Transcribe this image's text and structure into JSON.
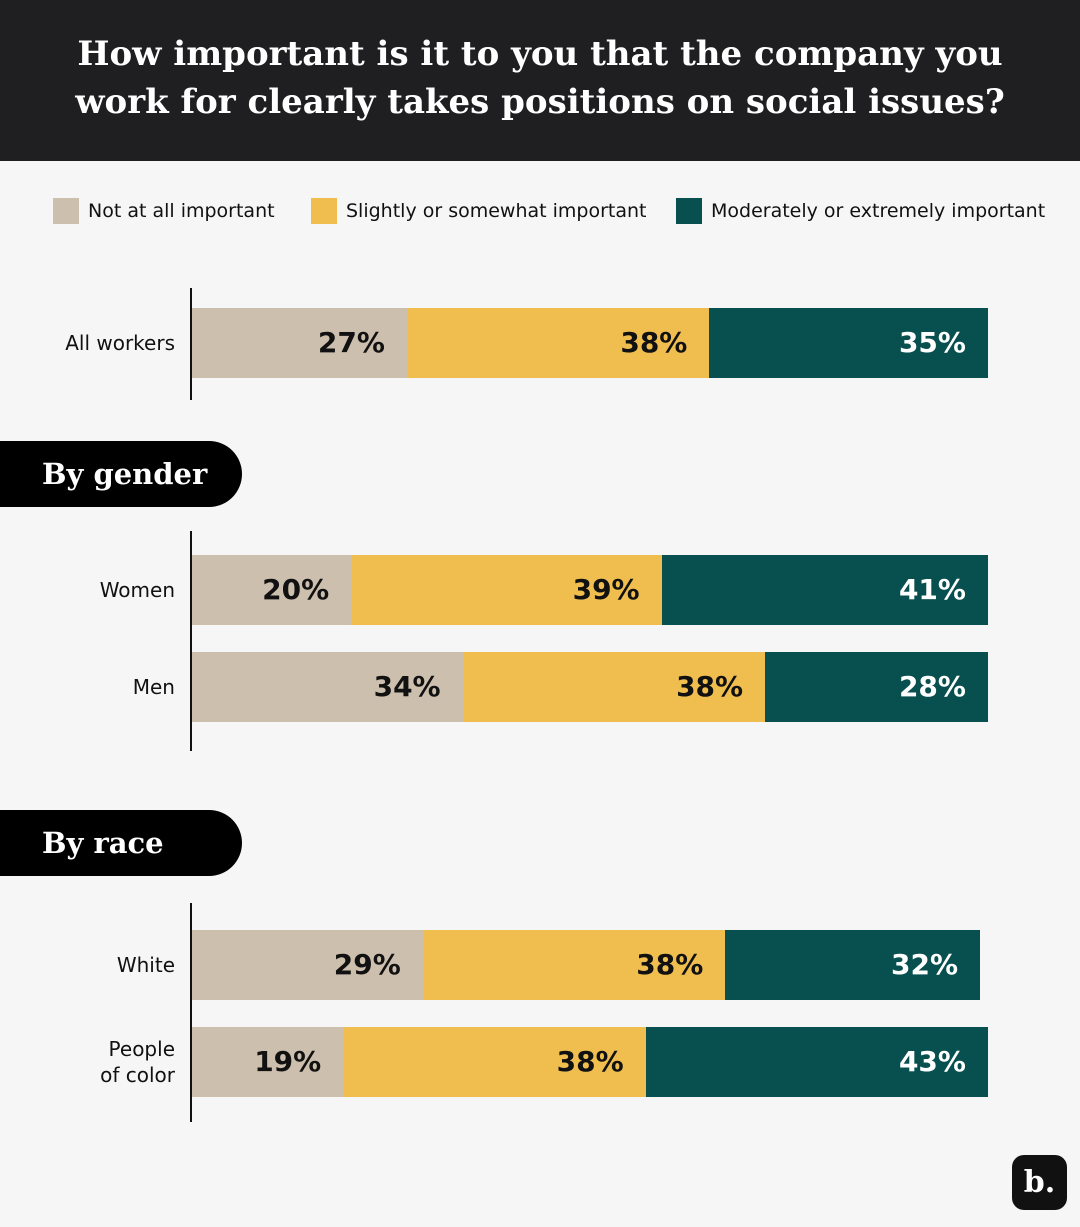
{
  "chart_data": {
    "type": "bar",
    "orientation": "horizontal",
    "stacked": true,
    "title": "How important is it to you that the company you work for clearly takes positions on social issues?",
    "categories": [
      "All workers",
      "Women",
      "Men",
      "White",
      "People of color"
    ],
    "sections": [
      "By gender",
      "By race"
    ],
    "xlim": [
      0,
      100
    ],
    "series": [
      {
        "name": "Not at all important",
        "color": "#cdbfad",
        "label_color": "#111111",
        "values": [
          27,
          20,
          34,
          29,
          19
        ],
        "value_labels": [
          "27%",
          "20%",
          "34%",
          "29%",
          "19%"
        ]
      },
      {
        "name": "Slightly or somewhat important",
        "color": "#f0be4f",
        "label_color": "#111111",
        "values": [
          38,
          39,
          38,
          38,
          38
        ],
        "value_labels": [
          "38%",
          "39%",
          "38%",
          "38%",
          "38%"
        ]
      },
      {
        "name": "Moderately or extremely important",
        "color": "#07504f",
        "label_color": "#ffffff",
        "values": [
          35,
          41,
          28,
          32,
          43
        ],
        "value_labels": [
          "35%",
          "41%",
          "28%",
          "32%",
          "43%"
        ]
      }
    ]
  },
  "logo": "b."
}
